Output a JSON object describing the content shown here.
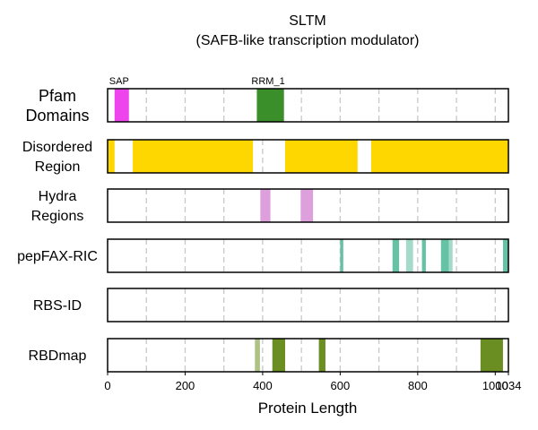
{
  "chart_data": {
    "type": "track",
    "title": "SLTM",
    "subtitle": "(SAFB-like transcription modulator)",
    "xlabel": "Protein Length",
    "xlim": [
      0,
      1034
    ],
    "x_ticks": [
      0,
      200,
      400,
      600,
      800,
      1000,
      1034
    ],
    "gridlines": [
      100,
      200,
      300,
      400,
      500,
      600,
      700,
      800,
      900,
      1000
    ],
    "grid": true,
    "tracks": [
      {
        "label": [
          "Pfam",
          "Domains"
        ],
        "segments": [
          {
            "start": 18,
            "end": 55,
            "color": "#ee44ee",
            "opacity": 1,
            "label": "SAP"
          },
          {
            "start": 385,
            "end": 455,
            "color": "#3a8f2a",
            "opacity": 1,
            "label": "RRM_1"
          }
        ]
      },
      {
        "label": [
          "Disordered",
          "Region"
        ],
        "segments": [
          {
            "start": 0,
            "end": 18,
            "color": "#ffd700",
            "opacity": 1
          },
          {
            "start": 65,
            "end": 375,
            "color": "#ffd700",
            "opacity": 1
          },
          {
            "start": 458,
            "end": 645,
            "color": "#ffd700",
            "opacity": 1
          },
          {
            "start": 680,
            "end": 1034,
            "color": "#ffd700",
            "opacity": 1
          }
        ]
      },
      {
        "label": [
          "Hydra",
          "Regions"
        ],
        "segments": [
          {
            "start": 394,
            "end": 420,
            "color": "#dda0dd",
            "opacity": 1
          },
          {
            "start": 498,
            "end": 530,
            "color": "#dda0dd",
            "opacity": 1
          }
        ]
      },
      {
        "label": [
          "pepFAX-RIC"
        ],
        "segments": [
          {
            "start": 600,
            "end": 608,
            "color": "#66c2a5",
            "opacity": 1
          },
          {
            "start": 735,
            "end": 752,
            "color": "#66c2a5",
            "opacity": 1
          },
          {
            "start": 770,
            "end": 788,
            "color": "#66c2a5",
            "opacity": 0.6
          },
          {
            "start": 811,
            "end": 821,
            "color": "#66c2a5",
            "opacity": 1
          },
          {
            "start": 860,
            "end": 880,
            "color": "#66c2a5",
            "opacity": 1
          },
          {
            "start": 870,
            "end": 890,
            "color": "#66c2a5",
            "opacity": 0.6
          },
          {
            "start": 1020,
            "end": 1034,
            "color": "#66c2a5",
            "opacity": 1
          }
        ]
      },
      {
        "label": [
          "RBS-ID"
        ],
        "segments": []
      },
      {
        "label": [
          "RBDmap"
        ],
        "segments": [
          {
            "start": 380,
            "end": 393,
            "color": "#6b8e23",
            "opacity": 0.55
          },
          {
            "start": 425,
            "end": 458,
            "color": "#6b8e23",
            "opacity": 1
          },
          {
            "start": 545,
            "end": 562,
            "color": "#6b8e23",
            "opacity": 1
          },
          {
            "start": 962,
            "end": 1020,
            "color": "#6b8e23",
            "opacity": 1
          }
        ]
      }
    ]
  }
}
